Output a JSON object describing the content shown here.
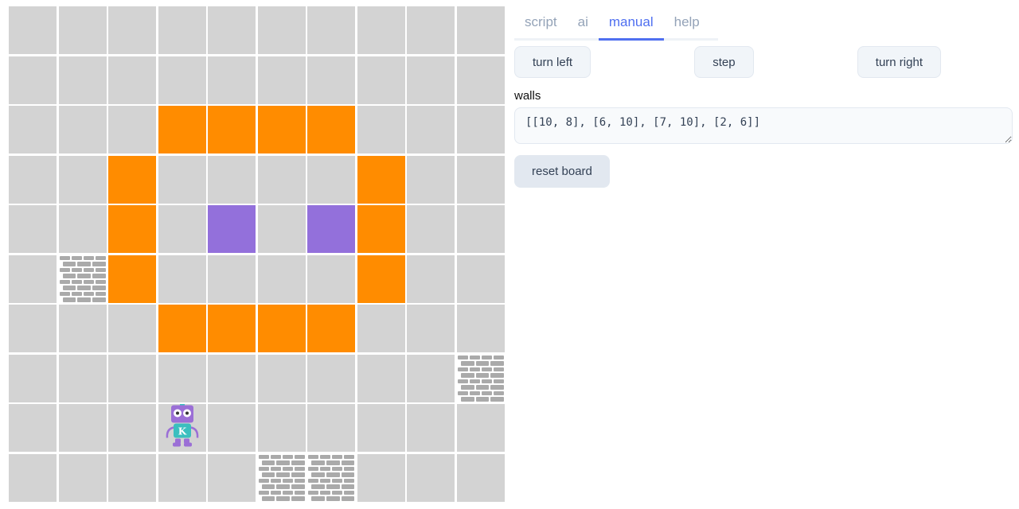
{
  "tabs": [
    {
      "label": "script"
    },
    {
      "label": "ai"
    },
    {
      "label": "manual",
      "active": true
    },
    {
      "label": "help"
    }
  ],
  "controls": {
    "turn_left": "turn left",
    "step": "step",
    "turn_right": "turn right"
  },
  "walls_label": "walls",
  "walls_value": "[[10, 8], [6, 10], [7, 10], [2, 6]]",
  "reset_label": "reset board",
  "board": {
    "size": 10,
    "colors": {
      "empty": "#d3d3d3",
      "orange": "#ff8c00",
      "purple": "#9370db"
    },
    "orange_cells": [
      [
        4,
        3
      ],
      [
        5,
        3
      ],
      [
        6,
        3
      ],
      [
        7,
        3
      ],
      [
        3,
        4
      ],
      [
        8,
        4
      ],
      [
        3,
        5
      ],
      [
        8,
        5
      ],
      [
        3,
        6
      ],
      [
        8,
        6
      ],
      [
        4,
        7
      ],
      [
        5,
        7
      ],
      [
        6,
        7
      ],
      [
        7,
        7
      ]
    ],
    "purple_cells": [
      [
        5,
        5
      ],
      [
        7,
        5
      ]
    ],
    "walls": [
      [
        10,
        8
      ],
      [
        6,
        10
      ],
      [
        7,
        10
      ],
      [
        2,
        6
      ]
    ],
    "robot": {
      "position": [
        4,
        9
      ],
      "label": "K",
      "direction": "south"
    }
  }
}
